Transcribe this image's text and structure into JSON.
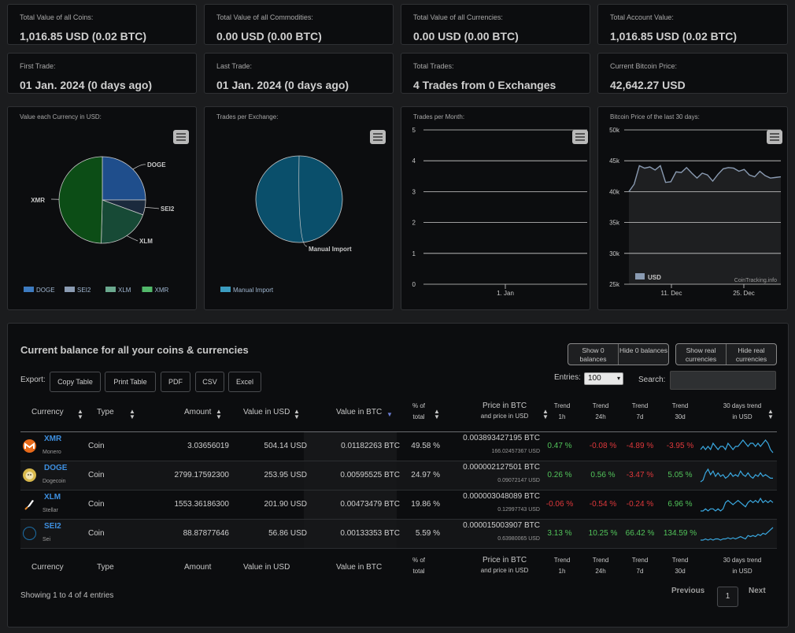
{
  "stats": [
    {
      "label": "Total Value of all Coins:",
      "value": "1,016.85 USD (0.02 BTC)"
    },
    {
      "label": "Total Value of all Commodities:",
      "value": "0.00 USD (0.00 BTC)"
    },
    {
      "label": "Total Value of all Currencies:",
      "value": "0.00 USD (0.00 BTC)"
    },
    {
      "label": "Total Account Value:",
      "value": "1,016.85 USD (0.02 BTC)"
    },
    {
      "label": "First Trade:",
      "value": "01 Jan. 2024 (0 days ago)"
    },
    {
      "label": "Last Trade:",
      "value": "01 Jan. 2024 (0 days ago)"
    },
    {
      "label": "Total Trades:",
      "value": "4 Trades from 0 Exchanges"
    },
    {
      "label": "Current Bitcoin Price:",
      "value": "42,642.27 USD"
    }
  ],
  "chart_data": [
    {
      "type": "pie",
      "title": "Value each Currency in USD:",
      "labels": [
        "DOGE",
        "SEI2",
        "XLM",
        "XMR"
      ],
      "values": [
        253.95,
        56.86,
        201.9,
        504.14
      ],
      "colors": [
        "#1f4e8c",
        "#1b2a3d",
        "#174a36",
        "#0c4d16"
      ],
      "legend_colors": [
        "#3d7bc0",
        "#8a9bb2",
        "#6aa88e",
        "#52b86a"
      ],
      "legend": "bottom"
    },
    {
      "type": "pie",
      "title": "Trades per Exchange:",
      "labels": [
        "Manual Import"
      ],
      "values": [
        4
      ],
      "colors": [
        "#0a4f6b"
      ],
      "legend_colors": [
        "#3b9cc0"
      ],
      "legend": "bottom"
    },
    {
      "type": "line",
      "title": "Trades per Month:",
      "x": [
        "1. Jan"
      ],
      "yticks": [
        0,
        1,
        2,
        3,
        4,
        5
      ],
      "ylim": [
        0,
        5
      ],
      "series": []
    },
    {
      "type": "area",
      "title": "Bitcoin Price of the last 30 days:",
      "xticks": [
        "11. Dec",
        "25. Dec"
      ],
      "yticks": [
        "25k",
        "30k",
        "35k",
        "40k",
        "45k",
        "50k"
      ],
      "ylim": [
        25000,
        50000
      ],
      "series": [
        {
          "name": "USD",
          "values": [
            40000,
            41200,
            44200,
            43800,
            44000,
            43500,
            44200,
            41500,
            41600,
            43200,
            43100,
            43900,
            43000,
            42200,
            43000,
            42700,
            41700,
            42800,
            43700,
            43900,
            43800,
            43300,
            43600,
            42700,
            42400,
            43300,
            42600,
            42200,
            42300,
            42400
          ]
        }
      ],
      "credit": "CoinTracking.info",
      "legend": "bottom-left"
    }
  ],
  "table": {
    "title": "Current balance for all your coins & currencies",
    "toggles1": [
      "Show 0 balances",
      "Hide 0 balances"
    ],
    "toggles2": [
      "Show real currencies",
      "Hide real currencies"
    ],
    "export_label": "Export:",
    "export_buttons": [
      "Copy Table",
      "Print Table",
      "PDF",
      "CSV",
      "Excel"
    ],
    "entries_label": "Entries:",
    "entries_value": "100",
    "search_label": "Search:",
    "headers": {
      "currency": "Currency",
      "type": "Type",
      "amount": "Amount",
      "value_usd": "Value in USD",
      "value_btc": "Value in BTC",
      "pct_1": "% of",
      "pct_2": "total",
      "price_1": "Price in BTC",
      "price_2": "and price in USD",
      "t1h_1": "Trend",
      "t1h_2": "1h",
      "t24_1": "Trend",
      "t24_2": "24h",
      "t7_1": "Trend",
      "t7_2": "7d",
      "t30_1": "Trend",
      "t30_2": "30d",
      "spark_1": "30 days trend",
      "spark_2": "in USD"
    },
    "rows": [
      {
        "symbol": "XMR",
        "name": "Monero",
        "type": "Coin",
        "amount": "3.03656019",
        "value_usd": "504.14 USD",
        "value_btc": "0.01182263 BTC",
        "pct": "49.58 %",
        "price_btc": "0.003893427195 BTC",
        "price_usd": "166.02457367 USD",
        "t1h": "0.47 %",
        "t24h": "-0.08 %",
        "t7d": "-4.89 %",
        "t30d": "-3.95 %",
        "icon": "monero-icon",
        "color": "#e86a1a",
        "spark": [
          6,
          5,
          6,
          5,
          6,
          4,
          5,
          6,
          5,
          5,
          6,
          4,
          5,
          6,
          5,
          5,
          4,
          3,
          4,
          5,
          4,
          4,
          5,
          4,
          5,
          4,
          3,
          4,
          6,
          7
        ]
      },
      {
        "symbol": "DOGE",
        "name": "Dogecoin",
        "type": "Coin",
        "amount": "2799.17592300",
        "value_usd": "253.95 USD",
        "value_btc": "0.00595525 BTC",
        "pct": "24.97 %",
        "price_btc": "0.000002127501 BTC",
        "price_usd": "0.09072147 USD",
        "t1h": "0.26 %",
        "t24h": "0.56 %",
        "t7d": "-3.47 %",
        "t30d": "5.05 %",
        "icon": "dogecoin-icon",
        "color": "#d8b84c",
        "spark": [
          9,
          8,
          4,
          2,
          5,
          3,
          6,
          4,
          6,
          5,
          7,
          6,
          4,
          6,
          5,
          6,
          3,
          5,
          6,
          4,
          6,
          7,
          5,
          6,
          4,
          6,
          5,
          6,
          7,
          7
        ]
      },
      {
        "symbol": "XLM",
        "name": "Stellar",
        "type": "Coin",
        "amount": "1553.36186300",
        "value_usd": "201.90 USD",
        "value_btc": "0.00473479 BTC",
        "pct": "19.86 %",
        "price_btc": "0.000003048089 BTC",
        "price_usd": "0.12997743 USD",
        "t1h": "-0.06 %",
        "t24h": "-0.54 %",
        "t7d": "-0.24 %",
        "t30d": "6.96 %",
        "icon": "stellar-icon",
        "color": "#ffffff",
        "spark": [
          10,
          10,
          9,
          10,
          9,
          9,
          10,
          9,
          10,
          9,
          6,
          5,
          6,
          7,
          6,
          5,
          6,
          7,
          8,
          6,
          5,
          6,
          5,
          6,
          4,
          6,
          5,
          6,
          5,
          6
        ]
      },
      {
        "symbol": "SEI2",
        "name": "Sei",
        "type": "Coin",
        "amount": "88.87877646",
        "value_usd": "56.86 USD",
        "value_btc": "0.00133353 BTC",
        "pct": "5.59 %",
        "price_btc": "0.000015003907 BTC",
        "price_usd": "0.63980065 USD",
        "t1h": "3.13 %",
        "t24h": "10.25 %",
        "t7d": "66.42 %",
        "t30d": "134.59 %",
        "icon": "sei-icon",
        "color": "#1d6fa8",
        "spark": [
          13,
          13,
          12,
          13,
          12,
          13,
          12,
          12,
          13,
          12,
          12,
          11,
          12,
          11,
          12,
          11,
          10,
          11,
          12,
          9,
          10,
          9,
          10,
          8,
          9,
          7,
          8,
          6,
          4,
          2
        ]
      }
    ],
    "showing": "Showing 1 to 4 of 4 entries",
    "prev": "Previous",
    "page": "1",
    "next": "Next"
  }
}
